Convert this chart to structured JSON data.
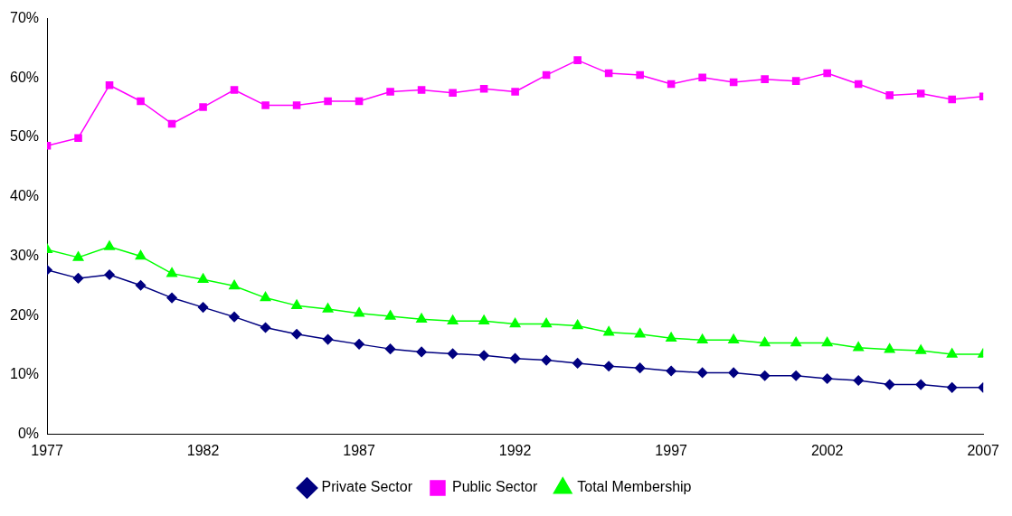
{
  "chart_data": {
    "type": "line",
    "x": [
      1977,
      1978,
      1979,
      1980,
      1981,
      1982,
      1983,
      1984,
      1985,
      1986,
      1987,
      1988,
      1989,
      1990,
      1991,
      1992,
      1993,
      1994,
      1995,
      1996,
      1997,
      1998,
      1999,
      2000,
      2001,
      2002,
      2003,
      2004,
      2005,
      2006,
      2007
    ],
    "series": [
      {
        "name": "Private Sector",
        "color": "#000080",
        "marker": "diamond",
        "values": [
          27.7,
          26.3,
          26.9,
          25.1,
          23.0,
          21.4,
          19.8,
          18.0,
          16.9,
          16.0,
          15.2,
          14.4,
          13.9,
          13.6,
          13.3,
          12.8,
          12.5,
          12.0,
          11.5,
          11.2,
          10.7,
          10.4,
          10.4,
          9.9,
          9.9,
          9.4,
          9.1,
          8.4,
          8.4,
          7.9,
          7.9
        ]
      },
      {
        "name": "Public Sector",
        "color": "#ff00ff",
        "marker": "square",
        "values": [
          48.6,
          49.9,
          58.8,
          56.1,
          52.3,
          55.1,
          58.0,
          55.4,
          55.4,
          56.1,
          56.1,
          57.7,
          58.0,
          57.5,
          58.2,
          57.7,
          60.5,
          63.0,
          60.8,
          60.5,
          59.0,
          60.1,
          59.3,
          59.8,
          59.5,
          60.8,
          59.0,
          57.1,
          57.4,
          56.4,
          56.9
        ]
      },
      {
        "name": "Total Membership",
        "color": "#00ff00",
        "marker": "triangle",
        "values": [
          31.1,
          29.8,
          31.6,
          30.0,
          27.1,
          26.1,
          25.0,
          23.0,
          21.7,
          21.1,
          20.4,
          19.9,
          19.4,
          19.1,
          19.1,
          18.6,
          18.6,
          18.3,
          17.2,
          16.9,
          16.2,
          15.9,
          15.9,
          15.4,
          15.4,
          15.4,
          14.6,
          14.3,
          14.1,
          13.5,
          13.5
        ]
      }
    ],
    "xlim": [
      1977,
      2007
    ],
    "xticks": [
      1977,
      1982,
      1987,
      1992,
      1997,
      2002,
      2007
    ],
    "ylim": [
      0,
      70
    ],
    "yticks": [
      {
        "value": 0,
        "label": "0%"
      },
      {
        "value": 10,
        "label": "10%"
      },
      {
        "value": 20,
        "label": "20%"
      },
      {
        "value": 30,
        "label": "30%"
      },
      {
        "value": 40,
        "label": "40%"
      },
      {
        "value": 50,
        "label": "50%"
      },
      {
        "value": 60,
        "label": "60%"
      },
      {
        "value": 70,
        "label": "70%"
      }
    ],
    "grid": false,
    "legend": "bottom",
    "line_style": "solid"
  }
}
